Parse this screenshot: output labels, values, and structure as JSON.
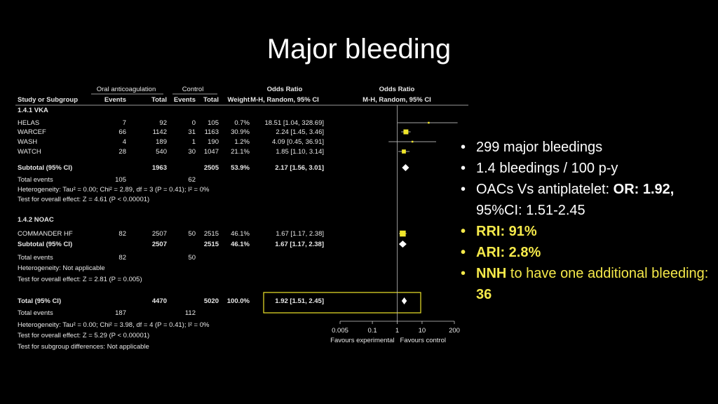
{
  "slide": {
    "title": "Major bleeding"
  },
  "colors": {
    "background": "#000000",
    "text": "#ffffff",
    "highlight": "#f5e94a",
    "marker": "#f0e62a"
  },
  "bullets": [
    {
      "text": "299 major bleedings"
    },
    {
      "text": "1.4 bleedings / 100 p-y"
    },
    {
      "pre": "OACs Vs antiplatelet: ",
      "strong": "OR: 1.92,",
      "line2": "95%CI: 1.51-2.45"
    },
    {
      "strong": "RRI: 91%"
    },
    {
      "strong": "ARI: 2.8%"
    },
    {
      "strong": "NNH",
      "mid": " to have one additional bleeding: ",
      "strong2": "36"
    }
  ],
  "chart_data": {
    "type": "forest",
    "headers": {
      "group1": "Oral anticoagulation",
      "group2": "Control",
      "study": "Study or Subgroup",
      "events": "Events",
      "total": "Total",
      "weight": "Weight",
      "or_col": "Odds Ratio",
      "or_col_sub": "M-H, Random, 95% CI",
      "plot_col": "Odds Ratio",
      "plot_col_sub": "M-H, Random, 95% CI"
    },
    "x_scale": "log",
    "xlim": [
      0.005,
      200
    ],
    "x_ticks": [
      "0.005",
      "0.1",
      "1",
      "10",
      "200"
    ],
    "x_tick_values": [
      0.005,
      0.1,
      1,
      10,
      200
    ],
    "favours_left": "Favours experimental",
    "favours_right": "Favours control",
    "subgroups": [
      {
        "label": "1.4.1 VKA",
        "studies": [
          {
            "name": "HELAS",
            "e1": "7",
            "t1": "92",
            "e2": "0",
            "t2": "105",
            "weight": "0.7%",
            "ci_text": "18.51 [1.04, 328.69]",
            "or": 18.51,
            "lo": 1.04,
            "hi": 328.69
          },
          {
            "name": "WARCEF",
            "e1": "66",
            "t1": "1142",
            "e2": "31",
            "t2": "1163",
            "weight": "30.9%",
            "ci_text": "2.24 [1.45, 3.46]",
            "or": 2.24,
            "lo": 1.45,
            "hi": 3.46
          },
          {
            "name": "WASH",
            "e1": "4",
            "t1": "189",
            "e2": "1",
            "t2": "190",
            "weight": "1.2%",
            "ci_text": "4.09 [0.45, 36.91]",
            "or": 4.09,
            "lo": 0.45,
            "hi": 36.91
          },
          {
            "name": "WATCH",
            "e1": "28",
            "t1": "540",
            "e2": "30",
            "t2": "1047",
            "weight": "21.1%",
            "ci_text": "1.85 [1.10, 3.14]",
            "or": 1.85,
            "lo": 1.1,
            "hi": 3.14
          }
        ],
        "subtotal": {
          "label": "Subtotal (95% CI)",
          "t1": "1963",
          "t2": "2505",
          "weight": "53.9%",
          "ci_text": "2.17 [1.56, 3.01]",
          "or": 2.17,
          "lo": 1.56,
          "hi": 3.01
        },
        "total_events": {
          "label": "Total events",
          "e1": "105",
          "e2": "62"
        },
        "heterogeneity": "Heterogeneity: Tau² = 0.00; Chi² = 2.89, df = 3 (P = 0.41); I² = 0%",
        "overall": "Test for overall effect: Z = 4.61 (P < 0.00001)"
      },
      {
        "label": "1.4.2 NOAC",
        "studies": [
          {
            "name": "COMMANDER HF",
            "e1": "82",
            "t1": "2507",
            "e2": "50",
            "t2": "2515",
            "weight": "46.1%",
            "ci_text": "1.67 [1.17, 2.38]",
            "or": 1.67,
            "lo": 1.17,
            "hi": 2.38
          }
        ],
        "subtotal": {
          "label": "Subtotal (95% CI)",
          "t1": "2507",
          "t2": "2515",
          "weight": "46.1%",
          "ci_text": "1.67 [1.17, 2.38]",
          "or": 1.67,
          "lo": 1.17,
          "hi": 2.38
        },
        "total_events": {
          "label": "Total events",
          "e1": "82",
          "e2": "50"
        },
        "heterogeneity": "Heterogeneity: Not applicable",
        "overall": "Test for overall effect: Z = 2.81 (P = 0.005)"
      }
    ],
    "total": {
      "label": "Total (95% CI)",
      "t1": "4470",
      "t2": "5020",
      "weight": "100.0%",
      "ci_text": "1.92 [1.51, 2.45]",
      "or": 1.92,
      "lo": 1.51,
      "hi": 2.45
    },
    "total_events": {
      "label": "Total events",
      "e1": "187",
      "e2": "112"
    },
    "heterogeneity": "Heterogeneity: Tau² = 0.00; Chi² = 3.98, df = 4 (P = 0.41); I² = 0%",
    "overall": "Test for overall effect: Z = 5.29 (P < 0.00001)",
    "subgroup_diff": "Test for subgroup differences: Not applicable"
  }
}
